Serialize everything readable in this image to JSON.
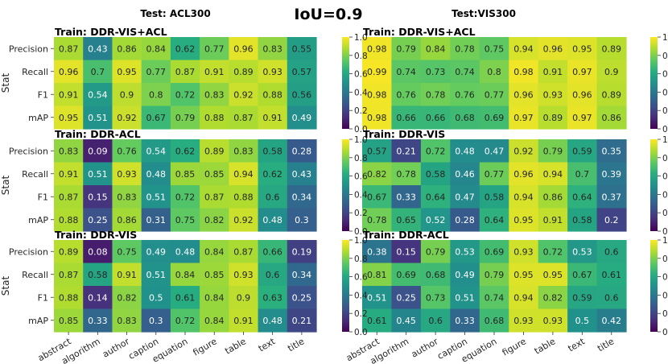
{
  "title_main": "IoU=0.9",
  "left_test_title": "Test: ACL300",
  "right_test_title": "Test:VIS300",
  "ylabel": "Stat",
  "row_labels": [
    "Precision",
    "Recall",
    "F1",
    "mAP"
  ],
  "col_labels": [
    "abstract",
    "algorithm",
    "author",
    "caption",
    "equation",
    "figure",
    "table",
    "text",
    "title"
  ],
  "colorbar": {
    "ticks": [
      "0.0",
      "0.2",
      "0.4",
      "0.6",
      "0.8",
      "1.0"
    ],
    "colormap": "viridis"
  },
  "chart_data": [
    {
      "type": "heatmap",
      "test": "ACL300",
      "title": "Train: DDR-VIS+ACL",
      "values": [
        [
          0.87,
          0.43,
          0.86,
          0.84,
          0.62,
          0.77,
          0.96,
          0.83,
          0.55
        ],
        [
          0.96,
          0.7,
          0.95,
          0.77,
          0.87,
          0.91,
          0.89,
          0.93,
          0.57
        ],
        [
          0.91,
          0.54,
          0.9,
          0.8,
          0.72,
          0.83,
          0.92,
          0.88,
          0.56
        ],
        [
          0.95,
          0.51,
          0.92,
          0.67,
          0.79,
          0.88,
          0.87,
          0.91,
          0.49
        ]
      ]
    },
    {
      "type": "heatmap",
      "test": "VIS300",
      "title": "Train: DDR-VIS+ACL",
      "values": [
        [
          0.98,
          0.79,
          0.84,
          0.78,
          0.75,
          0.94,
          0.96,
          0.95,
          0.89
        ],
        [
          0.99,
          0.74,
          0.73,
          0.74,
          0.8,
          0.98,
          0.91,
          0.97,
          0.9
        ],
        [
          0.98,
          0.76,
          0.78,
          0.76,
          0.77,
          0.96,
          0.93,
          0.96,
          0.89
        ],
        [
          0.98,
          0.66,
          0.66,
          0.68,
          0.69,
          0.97,
          0.89,
          0.97,
          0.86
        ]
      ]
    },
    {
      "type": "heatmap",
      "test": "ACL300",
      "title": "Train: DDR-ACL",
      "values": [
        [
          0.83,
          0.09,
          0.76,
          0.54,
          0.62,
          0.89,
          0.83,
          0.58,
          0.28
        ],
        [
          0.91,
          0.51,
          0.93,
          0.48,
          0.85,
          0.85,
          0.94,
          0.62,
          0.43
        ],
        [
          0.87,
          0.15,
          0.83,
          0.51,
          0.72,
          0.87,
          0.88,
          0.6,
          0.34
        ],
        [
          0.88,
          0.25,
          0.86,
          0.31,
          0.75,
          0.82,
          0.92,
          0.48,
          0.3
        ]
      ]
    },
    {
      "type": "heatmap",
      "test": "VIS300",
      "title": "Train: DDR-VIS",
      "values": [
        [
          0.57,
          0.21,
          0.72,
          0.48,
          0.47,
          0.92,
          0.79,
          0.59,
          0.35
        ],
        [
          0.82,
          0.78,
          0.58,
          0.46,
          0.77,
          0.96,
          0.94,
          0.7,
          0.39
        ],
        [
          0.67,
          0.33,
          0.64,
          0.47,
          0.58,
          0.94,
          0.86,
          0.64,
          0.37
        ],
        [
          0.78,
          0.65,
          0.52,
          0.28,
          0.64,
          0.95,
          0.91,
          0.58,
          0.2
        ]
      ]
    },
    {
      "type": "heatmap",
      "test": "ACL300",
      "title": "Train: DDR-VIS",
      "values": [
        [
          0.89,
          0.08,
          0.75,
          0.49,
          0.48,
          0.84,
          0.87,
          0.66,
          0.19
        ],
        [
          0.87,
          0.58,
          0.91,
          0.51,
          0.84,
          0.85,
          0.93,
          0.6,
          0.34
        ],
        [
          0.88,
          0.14,
          0.82,
          0.5,
          0.61,
          0.84,
          0.9,
          0.63,
          0.25
        ],
        [
          0.85,
          0.33,
          0.83,
          0.3,
          0.72,
          0.84,
          0.91,
          0.48,
          0.21
        ]
      ]
    },
    {
      "type": "heatmap",
      "test": "VIS300",
      "title": "Train: DDR-ACL",
      "values": [
        [
          0.38,
          0.15,
          0.79,
          0.53,
          0.69,
          0.93,
          0.72,
          0.53,
          0.6
        ],
        [
          0.81,
          0.69,
          0.68,
          0.49,
          0.79,
          0.95,
          0.95,
          0.67,
          0.61
        ],
        [
          0.51,
          0.25,
          0.73,
          0.51,
          0.74,
          0.94,
          0.82,
          0.59,
          0.6
        ],
        [
          0.61,
          0.45,
          0.6,
          0.33,
          0.68,
          0.93,
          0.93,
          0.5,
          0.42
        ]
      ]
    }
  ]
}
